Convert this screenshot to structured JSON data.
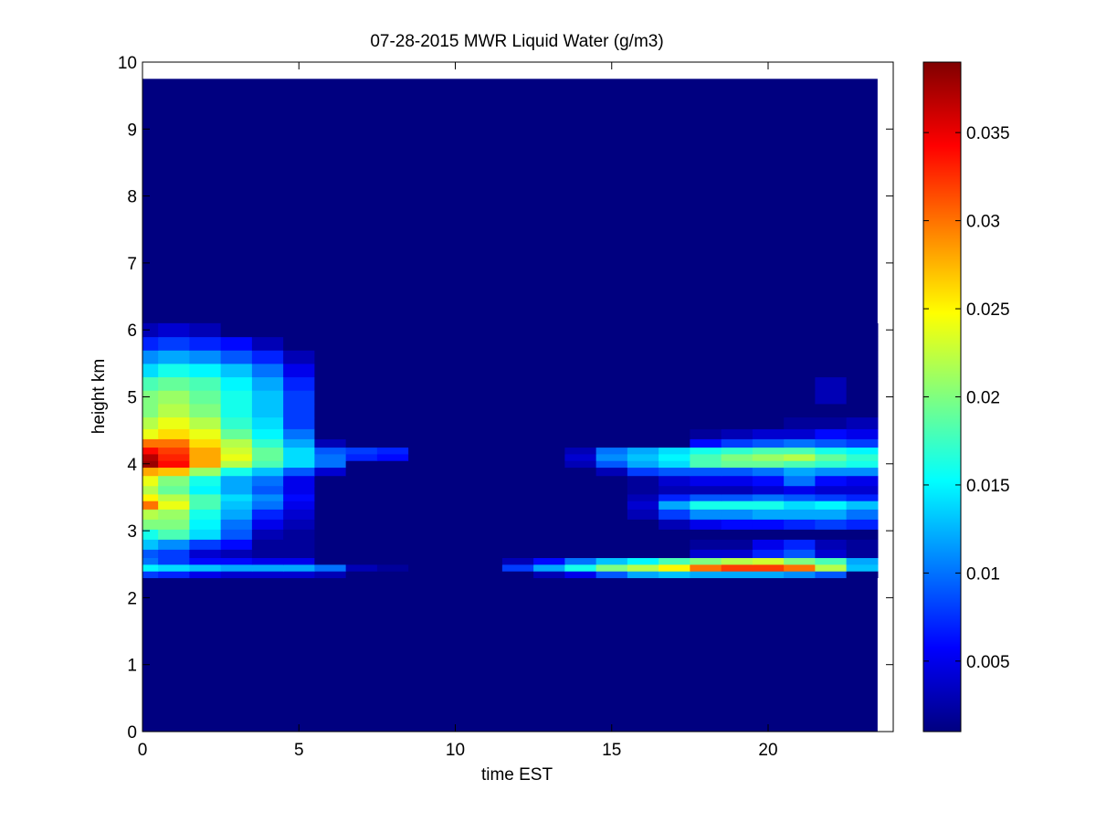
{
  "chart_data": {
    "type": "heatmap",
    "title": "07-28-2015 MWR Liquid Water (g/m3)",
    "xlabel": "time EST",
    "ylabel": "height km",
    "xlim": [
      0,
      24
    ],
    "ylim": [
      0,
      10
    ],
    "xticks": [
      "0",
      "5",
      "10",
      "15",
      "20"
    ],
    "yticks": [
      "0",
      "1",
      "2",
      "3",
      "4",
      "5",
      "6",
      "7",
      "8",
      "9",
      "10"
    ],
    "colormap": "jet",
    "colorbar": {
      "min": 0.001,
      "max": 0.039,
      "ticks": [
        "0.005",
        "0.01",
        "0.015",
        "0.02",
        "0.025",
        "0.03",
        "0.035"
      ]
    },
    "data_extent": {
      "x": [
        0,
        23.5
      ],
      "y": [
        0,
        9.75
      ]
    },
    "time_bins": [
      0,
      1,
      2,
      3,
      4,
      5,
      6,
      7,
      8,
      9,
      10,
      11,
      12,
      13,
      14,
      15,
      16,
      17,
      18,
      19,
      20,
      21,
      22,
      23
    ],
    "height_bins": [
      2.35,
      2.45,
      2.55,
      2.65,
      2.8,
      2.95,
      3.1,
      3.25,
      3.4,
      3.5,
      3.6,
      3.75,
      3.9,
      4.0,
      4.1,
      4.2,
      4.3,
      4.45,
      4.6,
      4.8,
      5.0,
      5.2,
      5.4,
      5.6,
      5.8,
      6.0
    ],
    "values": [
      [
        0.008,
        0.007,
        0.005,
        0.004,
        0.004,
        0.004,
        0.003,
        0.001,
        0.001,
        0.001,
        0.001,
        0.001,
        0.001,
        0.003,
        0.005,
        0.009,
        0.012,
        0.013,
        0.012,
        0.012,
        0.012,
        0.011,
        0.009,
        0.001
      ],
      [
        0.015,
        0.014,
        0.013,
        0.012,
        0.012,
        0.012,
        0.01,
        0.003,
        0.002,
        0.001,
        0.001,
        0.001,
        0.008,
        0.012,
        0.016,
        0.02,
        0.022,
        0.025,
        0.03,
        0.032,
        0.032,
        0.03,
        0.022,
        0.013
      ],
      [
        0.01,
        0.008,
        0.006,
        0.006,
        0.005,
        0.005,
        0.001,
        0.001,
        0.001,
        0.001,
        0.001,
        0.001,
        0.003,
        0.006,
        0.01,
        0.013,
        0.015,
        0.018,
        0.02,
        0.022,
        0.023,
        0.02,
        0.018,
        0.012
      ],
      [
        0.009,
        0.008,
        0.004,
        0.003,
        0.002,
        0.002,
        0.001,
        0.001,
        0.001,
        0.001,
        0.001,
        0.001,
        0.001,
        0.001,
        0.001,
        0.001,
        0.001,
        0.001,
        0.004,
        0.004,
        0.007,
        0.009,
        0.004,
        0.002
      ],
      [
        0.013,
        0.011,
        0.008,
        0.006,
        0.002,
        0.002,
        0.001,
        0.001,
        0.001,
        0.001,
        0.001,
        0.001,
        0.001,
        0.001,
        0.001,
        0.001,
        0.001,
        0.001,
        0.002,
        0.002,
        0.005,
        0.007,
        0.003,
        0.002
      ],
      [
        0.016,
        0.018,
        0.014,
        0.009,
        0.003,
        0.002,
        0.001,
        0.001,
        0.001,
        0.001,
        0.001,
        0.001,
        0.001,
        0.001,
        0.001,
        0.001,
        0.001,
        0.001,
        0.001,
        0.001,
        0.001,
        0.001,
        0.001,
        0.001
      ],
      [
        0.02,
        0.02,
        0.015,
        0.01,
        0.005,
        0.003,
        0.001,
        0.001,
        0.001,
        0.001,
        0.001,
        0.001,
        0.001,
        0.001,
        0.001,
        0.001,
        0.001,
        0.003,
        0.005,
        0.006,
        0.006,
        0.007,
        0.008,
        0.007
      ],
      [
        0.022,
        0.021,
        0.016,
        0.012,
        0.007,
        0.004,
        0.001,
        0.001,
        0.001,
        0.001,
        0.001,
        0.001,
        0.001,
        0.001,
        0.001,
        0.001,
        0.003,
        0.008,
        0.011,
        0.011,
        0.012,
        0.012,
        0.012,
        0.01
      ],
      [
        0.03,
        0.024,
        0.018,
        0.013,
        0.01,
        0.005,
        0.001,
        0.001,
        0.001,
        0.001,
        0.001,
        0.001,
        0.001,
        0.001,
        0.001,
        0.001,
        0.004,
        0.012,
        0.016,
        0.016,
        0.016,
        0.014,
        0.015,
        0.013
      ],
      [
        0.025,
        0.022,
        0.018,
        0.014,
        0.011,
        0.006,
        0.001,
        0.001,
        0.001,
        0.001,
        0.001,
        0.001,
        0.001,
        0.001,
        0.001,
        0.001,
        0.003,
        0.007,
        0.009,
        0.009,
        0.01,
        0.009,
        0.008,
        0.007
      ],
      [
        0.022,
        0.019,
        0.015,
        0.012,
        0.009,
        0.005,
        0.001,
        0.001,
        0.001,
        0.001,
        0.001,
        0.001,
        0.001,
        0.001,
        0.001,
        0.001,
        0.002,
        0.003,
        0.003,
        0.003,
        0.004,
        0.005,
        0.004,
        0.004
      ],
      [
        0.024,
        0.02,
        0.016,
        0.012,
        0.01,
        0.005,
        0.001,
        0.001,
        0.001,
        0.001,
        0.001,
        0.001,
        0.001,
        0.001,
        0.001,
        0.001,
        0.002,
        0.004,
        0.005,
        0.005,
        0.006,
        0.01,
        0.006,
        0.005
      ],
      [
        0.028,
        0.027,
        0.021,
        0.016,
        0.013,
        0.009,
        0.004,
        0.001,
        0.001,
        0.001,
        0.001,
        0.001,
        0.001,
        0.001,
        0.001,
        0.003,
        0.008,
        0.009,
        0.009,
        0.009,
        0.01,
        0.012,
        0.011,
        0.011
      ],
      [
        0.038,
        0.034,
        0.028,
        0.022,
        0.018,
        0.014,
        0.01,
        0.001,
        0.001,
        0.001,
        0.001,
        0.001,
        0.001,
        0.001,
        0.003,
        0.009,
        0.012,
        0.014,
        0.018,
        0.019,
        0.019,
        0.018,
        0.017,
        0.016
      ],
      [
        0.037,
        0.033,
        0.028,
        0.024,
        0.019,
        0.014,
        0.01,
        0.007,
        0.006,
        0.001,
        0.001,
        0.001,
        0.001,
        0.001,
        0.004,
        0.011,
        0.013,
        0.015,
        0.018,
        0.02,
        0.021,
        0.022,
        0.019,
        0.017
      ],
      [
        0.034,
        0.032,
        0.028,
        0.023,
        0.019,
        0.014,
        0.009,
        0.008,
        0.007,
        0.001,
        0.001,
        0.001,
        0.001,
        0.001,
        0.003,
        0.01,
        0.012,
        0.014,
        0.016,
        0.017,
        0.018,
        0.018,
        0.016,
        0.015
      ],
      [
        0.03,
        0.03,
        0.026,
        0.022,
        0.017,
        0.012,
        0.003,
        0.001,
        0.001,
        0.001,
        0.001,
        0.001,
        0.001,
        0.001,
        0.001,
        0.001,
        0.001,
        0.001,
        0.006,
        0.008,
        0.009,
        0.01,
        0.009,
        0.008
      ],
      [
        0.024,
        0.026,
        0.024,
        0.019,
        0.015,
        0.01,
        0.001,
        0.001,
        0.001,
        0.001,
        0.001,
        0.001,
        0.001,
        0.001,
        0.001,
        0.001,
        0.001,
        0.001,
        0.002,
        0.003,
        0.004,
        0.004,
        0.006,
        0.005
      ],
      [
        0.022,
        0.024,
        0.022,
        0.017,
        0.014,
        0.008,
        0.001,
        0.001,
        0.001,
        0.001,
        0.001,
        0.001,
        0.001,
        0.001,
        0.001,
        0.001,
        0.001,
        0.001,
        0.001,
        0.001,
        0.001,
        0.002,
        0.002,
        0.003
      ],
      [
        0.02,
        0.022,
        0.02,
        0.016,
        0.013,
        0.008,
        0.001,
        0.001,
        0.001,
        0.001,
        0.001,
        0.001,
        0.001,
        0.001,
        0.001,
        0.001,
        0.001,
        0.001,
        0.001,
        0.001,
        0.001,
        0.001,
        0.001,
        0.001
      ],
      [
        0.02,
        0.021,
        0.019,
        0.016,
        0.013,
        0.008,
        0.001,
        0.001,
        0.001,
        0.001,
        0.001,
        0.001,
        0.001,
        0.001,
        0.001,
        0.001,
        0.001,
        0.001,
        0.001,
        0.001,
        0.001,
        0.001,
        0.003,
        0.001
      ],
      [
        0.018,
        0.019,
        0.018,
        0.015,
        0.012,
        0.007,
        0.001,
        0.001,
        0.001,
        0.001,
        0.001,
        0.001,
        0.001,
        0.001,
        0.001,
        0.001,
        0.001,
        0.001,
        0.001,
        0.001,
        0.001,
        0.001,
        0.003,
        0.001
      ],
      [
        0.014,
        0.016,
        0.015,
        0.013,
        0.01,
        0.005,
        0.001,
        0.001,
        0.001,
        0.001,
        0.001,
        0.001,
        0.001,
        0.001,
        0.001,
        0.001,
        0.001,
        0.001,
        0.001,
        0.001,
        0.001,
        0.001,
        0.001,
        0.001
      ],
      [
        0.011,
        0.012,
        0.011,
        0.009,
        0.007,
        0.003,
        0.001,
        0.001,
        0.001,
        0.001,
        0.001,
        0.001,
        0.001,
        0.001,
        0.001,
        0.001,
        0.001,
        0.001,
        0.001,
        0.001,
        0.001,
        0.001,
        0.001,
        0.001
      ],
      [
        0.007,
        0.008,
        0.007,
        0.006,
        0.003,
        0.001,
        0.001,
        0.001,
        0.001,
        0.001,
        0.001,
        0.001,
        0.001,
        0.001,
        0.001,
        0.001,
        0.001,
        0.001,
        0.001,
        0.001,
        0.001,
        0.001,
        0.001,
        0.001
      ],
      [
        0.003,
        0.004,
        0.003,
        0.001,
        0.001,
        0.001,
        0.001,
        0.001,
        0.001,
        0.001,
        0.001,
        0.001,
        0.001,
        0.001,
        0.001,
        0.001,
        0.001,
        0.001,
        0.001,
        0.001,
        0.001,
        0.001,
        0.001,
        0.001
      ]
    ]
  }
}
